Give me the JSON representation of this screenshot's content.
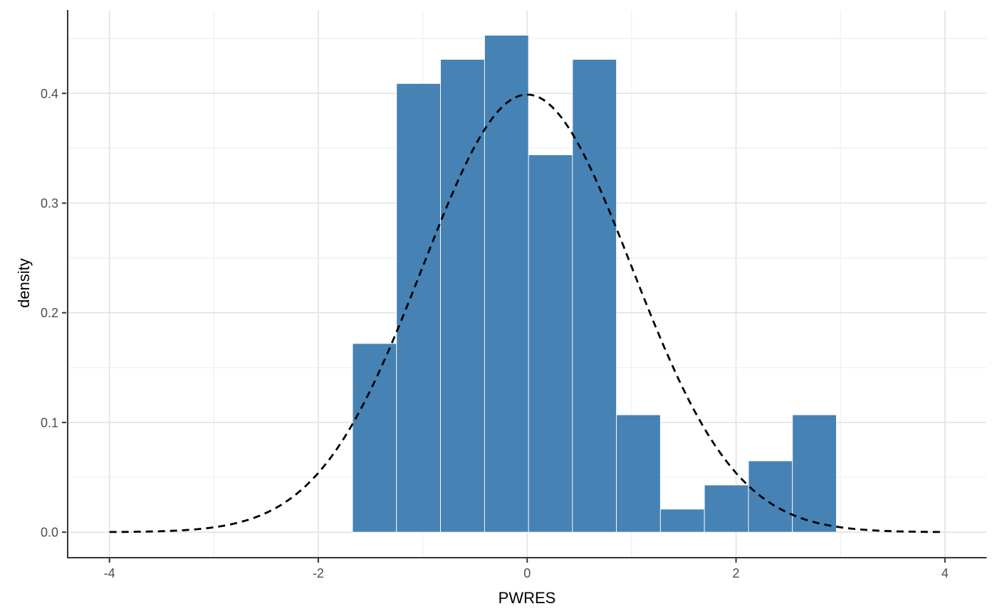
{
  "figure": {
    "xlabel": "PWRES",
    "ylabel": "density"
  },
  "chart_data": {
    "type": "histogram",
    "title": "",
    "xlabel": "PWRES",
    "ylabel": "density",
    "xlim": [
      -4.4,
      4.4
    ],
    "ylim": [
      -0.0226,
      0.4754
    ],
    "grid": "major and minor, light gray on white",
    "legend": "none",
    "x_ticks": [
      -4,
      -2,
      0,
      2,
      4
    ],
    "x_tick_labels": [
      "-4",
      "-2",
      "0",
      "2",
      "4"
    ],
    "x_minor_ticks": [
      -3,
      -1,
      1,
      3
    ],
    "y_ticks": [
      0.0,
      0.1,
      0.2,
      0.3,
      0.4
    ],
    "y_tick_labels": [
      "0.0",
      "0.1",
      "0.2",
      "0.3",
      "0.4"
    ],
    "y_minor_ticks": [
      0.05,
      0.15,
      0.25,
      0.35,
      0.45
    ],
    "histogram": {
      "bin_edges": [
        -1.672,
        -1.251,
        -0.83,
        -0.408,
        0.013,
        0.434,
        0.855,
        1.276,
        1.697,
        2.119,
        2.54,
        2.961
      ],
      "densities": [
        0.172,
        0.409,
        0.431,
        0.453,
        0.344,
        0.431,
        0.107,
        0.021,
        0.043,
        0.065,
        0.107
      ],
      "fill_color": "#4682B4",
      "bar_stroke_color": "#FFFFFF"
    },
    "density_curve": {
      "distribution": "normal",
      "mean": 0,
      "sd": 1,
      "x_range": [
        -4,
        4
      ],
      "peak_density": 0.3989,
      "line_color": "#000000",
      "line_style": "dashed"
    },
    "theme": {
      "background": "#FFFFFF",
      "grid_major_color": "#e2e2e2",
      "grid_minor_color": "#eeeeee",
      "axis_line_color": "#343434",
      "tick_label_color": "#4d4d4d",
      "axis_title_color": "#000000"
    }
  }
}
